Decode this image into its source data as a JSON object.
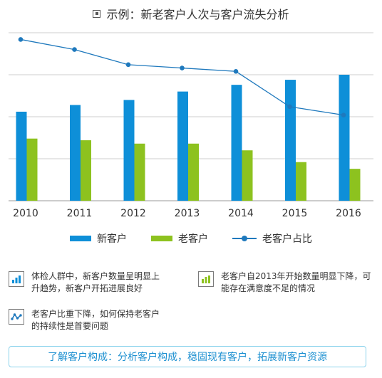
{
  "header": {
    "title": "示例：新老客户人次与客户流失分析"
  },
  "chart_data": {
    "type": "bar",
    "categories": [
      "2010",
      "2011",
      "2012",
      "2013",
      "2014",
      "2015",
      "2016"
    ],
    "ylim": [
      0,
      100
    ],
    "grid": true,
    "series": [
      {
        "name": "新客户",
        "kind": "bar",
        "color": "#0e8fd8",
        "values": [
          53,
          57,
          60,
          65,
          69,
          72,
          75
        ]
      },
      {
        "name": "老客户",
        "kind": "bar",
        "color": "#8dc21f",
        "values": [
          37,
          36,
          34,
          34,
          30,
          23,
          19
        ]
      },
      {
        "name": "老客户占比",
        "kind": "line",
        "color": "#1f79bd",
        "values": [
          96,
          90,
          81,
          79,
          77,
          56,
          51
        ]
      }
    ],
    "legend_position": "bottom"
  },
  "notes": [
    {
      "icon": "bar-chart-rising-icon",
      "text": "体检人群中，新客户数量呈明显上\n升趋势，新客户开拓进展良好"
    },
    {
      "icon": "bar-chart-green-icon",
      "text": "老客户自2013年开始数量明显下降，可\n能存在满意度不足的情况"
    },
    {
      "icon": "line-trend-icon",
      "text": "老客户比重下降，如何保持老客户\n的持续性是首要问题"
    }
  ],
  "banner": {
    "text": "了解客户构成：分析客户构成，稳固现有客户，拓展新客户资源"
  },
  "colors": {
    "new_customer": "#0e8fd8",
    "old_customer": "#8dc21f",
    "ratio_line": "#1f79bd",
    "banner_text": "#1b8fd0",
    "banner_border": "#8cd3ec"
  }
}
